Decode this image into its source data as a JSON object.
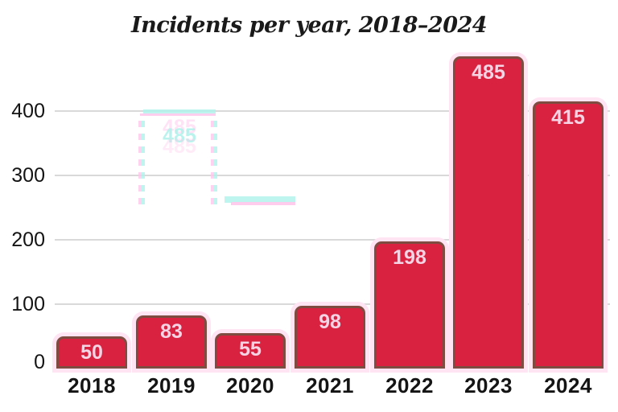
{
  "title": "Incidents per year, 2018–2024",
  "chart_data": {
    "type": "bar",
    "title": "Incidents per year, 2018–2024",
    "categories": [
      "2018",
      "2019",
      "2020",
      "2021",
      "2022",
      "2023",
      "2024"
    ],
    "values": [
      50,
      83,
      55,
      98,
      198,
      485,
      415
    ],
    "xlabel": "",
    "ylabel": "",
    "ylim": [
      0,
      500
    ],
    "yticks": [
      0,
      100,
      200,
      300,
      400
    ],
    "grid": true,
    "legend": false,
    "bar_labels_inside_top": true,
    "colors": {
      "bar_fill": "#d82240",
      "bar_border": "#7f4c41",
      "bar_halo": "#ffe4f4",
      "bar_label": "#f6d4e4",
      "gridline": "#d9d9d9",
      "axis_text": "#141414",
      "title_text": "#1a1a1a"
    }
  },
  "ghost": {
    "label": "485",
    "cyan": "#aff2eb",
    "pink": "#ffc6ec"
  }
}
